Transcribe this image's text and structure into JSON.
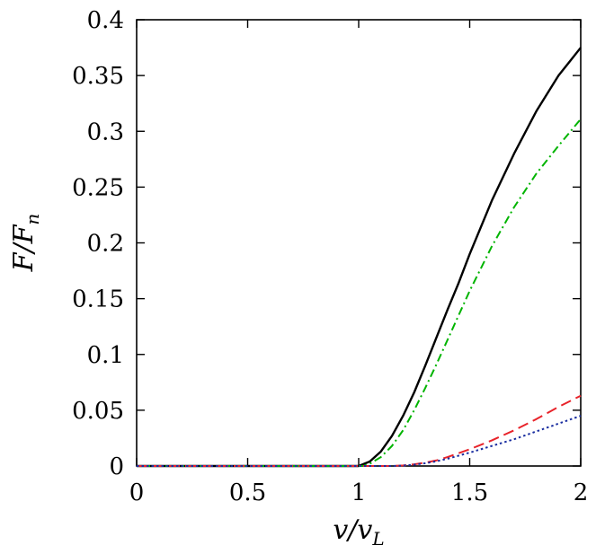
{
  "chart_data": {
    "type": "line",
    "xlabel": {
      "main": "v/v",
      "sub": "L"
    },
    "ylabel": {
      "main": "F/F",
      "sub": "n"
    },
    "xlim": [
      0,
      2
    ],
    "ylim": [
      0,
      0.4
    ],
    "x_ticks": [
      "0",
      "0.5",
      "1",
      "1.5",
      "2"
    ],
    "y_ticks": [
      "0",
      "0.05",
      "0.1",
      "0.15",
      "0.2",
      "0.25",
      "0.3",
      "0.35",
      "0.4"
    ],
    "grid": false,
    "legend": "none",
    "series": [
      {
        "style": "solid",
        "color": "#000000",
        "points": [
          [
            0,
            0
          ],
          [
            0.5,
            0
          ],
          [
            1.0,
            0
          ],
          [
            1.05,
            0.004
          ],
          [
            1.1,
            0.013
          ],
          [
            1.15,
            0.027
          ],
          [
            1.2,
            0.045
          ],
          [
            1.25,
            0.066
          ],
          [
            1.3,
            0.09
          ],
          [
            1.35,
            0.115
          ],
          [
            1.4,
            0.14
          ],
          [
            1.45,
            0.164
          ],
          [
            1.5,
            0.19
          ],
          [
            1.6,
            0.238
          ],
          [
            1.7,
            0.28
          ],
          [
            1.8,
            0.318
          ],
          [
            1.9,
            0.35
          ],
          [
            2.0,
            0.375
          ]
        ]
      },
      {
        "style": "dashdot",
        "color": "#00b400",
        "points": [
          [
            0,
            0
          ],
          [
            0.5,
            0
          ],
          [
            1.02,
            0
          ],
          [
            1.05,
            0.002
          ],
          [
            1.1,
            0.008
          ],
          [
            1.15,
            0.018
          ],
          [
            1.2,
            0.032
          ],
          [
            1.25,
            0.05
          ],
          [
            1.3,
            0.07
          ],
          [
            1.35,
            0.091
          ],
          [
            1.4,
            0.113
          ],
          [
            1.45,
            0.135
          ],
          [
            1.5,
            0.157
          ],
          [
            1.6,
            0.197
          ],
          [
            1.7,
            0.232
          ],
          [
            1.8,
            0.262
          ],
          [
            1.9,
            0.287
          ],
          [
            2.0,
            0.311
          ]
        ]
      },
      {
        "style": "dashed",
        "color": "#e8232a",
        "points": [
          [
            0,
            0
          ],
          [
            0.5,
            0
          ],
          [
            1.15,
            0
          ],
          [
            1.2,
            0.0005
          ],
          [
            1.25,
            0.0015
          ],
          [
            1.3,
            0.003
          ],
          [
            1.35,
            0.005
          ],
          [
            1.4,
            0.008
          ],
          [
            1.5,
            0.015
          ],
          [
            1.6,
            0.023
          ],
          [
            1.7,
            0.032
          ],
          [
            1.8,
            0.042
          ],
          [
            1.9,
            0.053
          ],
          [
            2.0,
            0.063
          ]
        ]
      },
      {
        "style": "dotted",
        "color": "#1a2ea0",
        "points": [
          [
            0,
            0
          ],
          [
            0.5,
            0
          ],
          [
            1.15,
            0
          ],
          [
            1.2,
            0.0004
          ],
          [
            1.25,
            0.0012
          ],
          [
            1.3,
            0.0025
          ],
          [
            1.35,
            0.0042
          ],
          [
            1.4,
            0.0065
          ],
          [
            1.5,
            0.012
          ],
          [
            1.6,
            0.018
          ],
          [
            1.7,
            0.024
          ],
          [
            1.8,
            0.031
          ],
          [
            1.9,
            0.038
          ],
          [
            2.0,
            0.045
          ]
        ]
      }
    ]
  }
}
